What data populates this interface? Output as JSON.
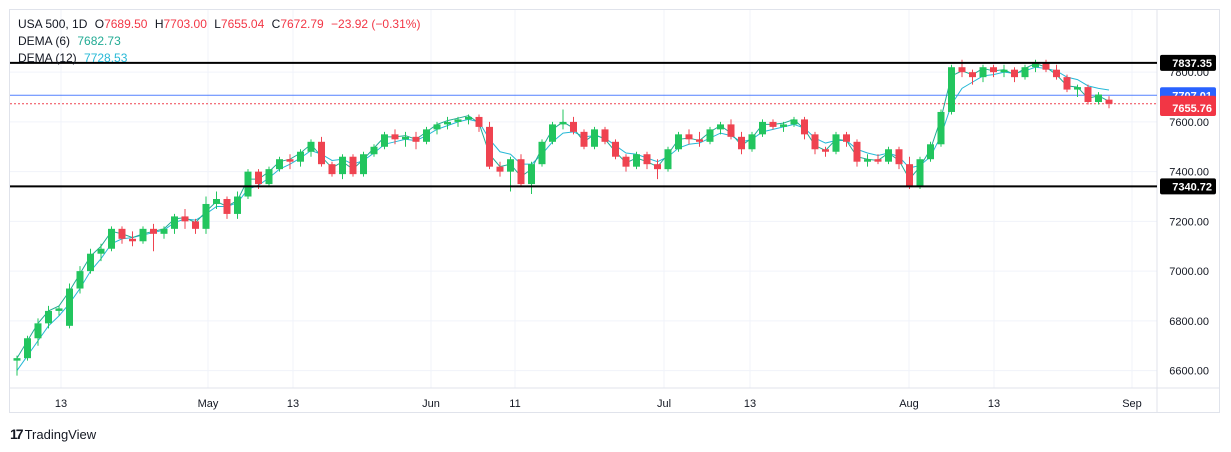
{
  "legend": {
    "symbol": "USA 500",
    "interval": "1D",
    "open_label": "O",
    "open": "7689.50",
    "high_label": "H",
    "high": "7703.00",
    "low_label": "L",
    "low": "7655.04",
    "close_label": "C",
    "close": "7672.79",
    "change": "−23.92 (−0.31%)",
    "dema6_label": "DEMA (6)",
    "dema6_value": "7682.73",
    "dema12_label": "DEMA (12)",
    "dema12_value": "7728.53"
  },
  "brand": {
    "name": "TradingView"
  },
  "colors": {
    "up": "#22c55e",
    "down": "#ef4350",
    "dema6": "#22ab94",
    "dema12": "#26b8d6",
    "grid": "#f0f3fa",
    "text": "#131722",
    "hline": "#000000",
    "price_line": "#2962ff"
  },
  "chart_data": {
    "type": "candlestick",
    "title": "USA 500, 1D",
    "x_ticks": [
      "13",
      "May",
      "13",
      "Jun",
      "11",
      "Jul",
      "13",
      "Aug",
      "13",
      "Sep"
    ],
    "y_ticks": [
      6600,
      6800,
      7000,
      7200,
      7400,
      7600,
      7800
    ],
    "y_tick_labels": [
      "6600.00",
      "6800.00",
      "7000.00",
      "7200.00",
      "7400.00",
      "7600.00",
      "7800.00"
    ],
    "ylim": [
      6530,
      8050
    ],
    "grid": true,
    "horizontal_levels": [
      {
        "value": 7837.35,
        "label": "7837.35",
        "style": "thick-black"
      },
      {
        "value": 7340.72,
        "label": "7340.72",
        "style": "thick-black"
      }
    ],
    "price_labels": [
      {
        "value": 7707.01,
        "label": "7707.01",
        "color": "#2962ff"
      },
      {
        "value": 7672.79,
        "label": "7672.79",
        "color": "#f23645"
      },
      {
        "value": 7655.76,
        "label": "7655.76",
        "color": "#f23645"
      }
    ],
    "series": [
      {
        "name": "USA 500",
        "ohlc": [
          [
            6640,
            6660,
            6580,
            6650
          ],
          [
            6650,
            6740,
            6640,
            6730
          ],
          [
            6730,
            6810,
            6700,
            6790
          ],
          [
            6790,
            6860,
            6770,
            6840
          ],
          [
            6840,
            6860,
            6820,
            6850
          ],
          [
            6780,
            6950,
            6770,
            6930
          ],
          [
            6930,
            7020,
            6910,
            7000
          ],
          [
            7000,
            7090,
            6990,
            7070
          ],
          [
            7070,
            7110,
            7040,
            7090
          ],
          [
            7090,
            7180,
            7080,
            7170
          ],
          [
            7170,
            7180,
            7110,
            7130
          ],
          [
            7130,
            7160,
            7100,
            7120
          ],
          [
            7120,
            7180,
            7110,
            7170
          ],
          [
            7170,
            7190,
            7080,
            7150
          ],
          [
            7150,
            7180,
            7130,
            7170
          ],
          [
            7170,
            7230,
            7150,
            7220
          ],
          [
            7220,
            7250,
            7170,
            7200
          ],
          [
            7200,
            7210,
            7150,
            7170
          ],
          [
            7170,
            7300,
            7150,
            7270
          ],
          [
            7270,
            7320,
            7250,
            7290
          ],
          [
            7290,
            7300,
            7210,
            7230
          ],
          [
            7230,
            7320,
            7210,
            7300
          ],
          [
            7300,
            7410,
            7290,
            7400
          ],
          [
            7400,
            7410,
            7330,
            7350
          ],
          [
            7350,
            7420,
            7340,
            7410
          ],
          [
            7410,
            7460,
            7400,
            7450
          ],
          [
            7450,
            7470,
            7410,
            7440
          ],
          [
            7440,
            7490,
            7420,
            7480
          ],
          [
            7480,
            7530,
            7460,
            7520
          ],
          [
            7520,
            7540,
            7420,
            7430
          ],
          [
            7430,
            7440,
            7380,
            7390
          ],
          [
            7390,
            7470,
            7370,
            7460
          ],
          [
            7460,
            7470,
            7380,
            7390
          ],
          [
            7390,
            7480,
            7380,
            7470
          ],
          [
            7470,
            7510,
            7460,
            7500
          ],
          [
            7500,
            7560,
            7490,
            7550
          ],
          [
            7550,
            7570,
            7510,
            7530
          ],
          [
            7530,
            7560,
            7500,
            7540
          ],
          [
            7540,
            7560,
            7490,
            7520
          ],
          [
            7520,
            7580,
            7510,
            7570
          ],
          [
            7570,
            7600,
            7550,
            7590
          ],
          [
            7590,
            7620,
            7570,
            7600
          ],
          [
            7600,
            7620,
            7580,
            7610
          ],
          [
            7610,
            7630,
            7590,
            7620
          ],
          [
            7620,
            7630,
            7560,
            7580
          ],
          [
            7580,
            7600,
            7410,
            7420
          ],
          [
            7420,
            7440,
            7380,
            7400
          ],
          [
            7400,
            7460,
            7320,
            7450
          ],
          [
            7450,
            7470,
            7340,
            7350
          ],
          [
            7350,
            7440,
            7310,
            7430
          ],
          [
            7430,
            7530,
            7420,
            7520
          ],
          [
            7520,
            7600,
            7510,
            7590
          ],
          [
            7590,
            7650,
            7570,
            7600
          ],
          [
            7600,
            7620,
            7550,
            7560
          ],
          [
            7560,
            7570,
            7490,
            7500
          ],
          [
            7500,
            7580,
            7490,
            7570
          ],
          [
            7570,
            7580,
            7510,
            7520
          ],
          [
            7520,
            7530,
            7450,
            7460
          ],
          [
            7460,
            7470,
            7400,
            7420
          ],
          [
            7420,
            7480,
            7410,
            7470
          ],
          [
            7470,
            7480,
            7410,
            7430
          ],
          [
            7430,
            7450,
            7370,
            7410
          ],
          [
            7410,
            7500,
            7400,
            7490
          ],
          [
            7490,
            7560,
            7480,
            7550
          ],
          [
            7550,
            7570,
            7510,
            7530
          ],
          [
            7530,
            7560,
            7500,
            7520
          ],
          [
            7520,
            7580,
            7510,
            7570
          ],
          [
            7570,
            7600,
            7550,
            7590
          ],
          [
            7590,
            7610,
            7530,
            7540
          ],
          [
            7540,
            7560,
            7470,
            7490
          ],
          [
            7490,
            7560,
            7480,
            7550
          ],
          [
            7550,
            7610,
            7540,
            7600
          ],
          [
            7600,
            7610,
            7570,
            7580
          ],
          [
            7580,
            7600,
            7560,
            7590
          ],
          [
            7590,
            7620,
            7580,
            7610
          ],
          [
            7610,
            7620,
            7530,
            7550
          ],
          [
            7550,
            7560,
            7470,
            7490
          ],
          [
            7490,
            7500,
            7460,
            7480
          ],
          [
            7480,
            7560,
            7470,
            7550
          ],
          [
            7550,
            7560,
            7500,
            7520
          ],
          [
            7520,
            7530,
            7420,
            7440
          ],
          [
            7440,
            7470,
            7420,
            7450
          ],
          [
            7450,
            7470,
            7430,
            7440
          ],
          [
            7440,
            7500,
            7430,
            7490
          ],
          [
            7490,
            7500,
            7410,
            7430
          ],
          [
            7430,
            7460,
            7330,
            7340
          ],
          [
            7340,
            7460,
            7330,
            7450
          ],
          [
            7450,
            7520,
            7440,
            7510
          ],
          [
            7510,
            7650,
            7500,
            7640
          ],
          [
            7640,
            7830,
            7630,
            7820
          ],
          [
            7820,
            7850,
            7780,
            7800
          ],
          [
            7800,
            7810,
            7750,
            7780
          ],
          [
            7780,
            7830,
            7760,
            7820
          ],
          [
            7820,
            7830,
            7780,
            7800
          ],
          [
            7800,
            7830,
            7780,
            7810
          ],
          [
            7810,
            7820,
            7760,
            7780
          ],
          [
            7780,
            7830,
            7770,
            7820
          ],
          [
            7820,
            7850,
            7800,
            7840
          ],
          [
            7840,
            7850,
            7800,
            7810
          ],
          [
            7810,
            7830,
            7770,
            7780
          ],
          [
            7780,
            7790,
            7720,
            7730
          ],
          [
            7730,
            7750,
            7700,
            7740
          ],
          [
            7740,
            7750,
            7670,
            7680
          ],
          [
            7680,
            7720,
            7670,
            7710
          ],
          [
            7689.5,
            7703,
            7655.04,
            7672.79
          ]
        ]
      },
      {
        "name": "DEMA (6)",
        "values": [
          6650,
          6720,
          6790,
          6840,
          6860,
          6920,
          6990,
          7060,
          7100,
          7160,
          7150,
          7135,
          7150,
          7160,
          7170,
          7210,
          7215,
          7195,
          7240,
          7280,
          7260,
          7285,
          7370,
          7370,
          7400,
          7440,
          7450,
          7475,
          7510,
          7460,
          7415,
          7440,
          7410,
          7450,
          7495,
          7540,
          7540,
          7545,
          7530,
          7560,
          7590,
          7605,
          7615,
          7625,
          7595,
          7470,
          7420,
          7430,
          7380,
          7410,
          7495,
          7570,
          7600,
          7575,
          7520,
          7550,
          7530,
          7480,
          7435,
          7455,
          7440,
          7420,
          7470,
          7530,
          7535,
          7525,
          7560,
          7585,
          7555,
          7505,
          7535,
          7590,
          7590,
          7595,
          7610,
          7570,
          7505,
          7485,
          7530,
          7525,
          7460,
          7450,
          7445,
          7475,
          7445,
          7370,
          7420,
          7490,
          7615,
          7785,
          7805,
          7790,
          7815,
          7805,
          7810,
          7790,
          7815,
          7835,
          7820,
          7790,
          7745,
          7740,
          7695,
          7705,
          7682.73
        ]
      },
      {
        "name": "DEMA (12)",
        "values": [
          6600,
          6660,
          6720,
          6780,
          6820,
          6870,
          6930,
          7000,
          7050,
          7110,
          7130,
          7135,
          7145,
          7155,
          7165,
          7195,
          7210,
          7205,
          7230,
          7260,
          7260,
          7275,
          7330,
          7345,
          7375,
          7410,
          7430,
          7455,
          7485,
          7470,
          7445,
          7450,
          7430,
          7445,
          7475,
          7510,
          7520,
          7530,
          7525,
          7545,
          7570,
          7585,
          7600,
          7610,
          7600,
          7530,
          7480,
          7470,
          7430,
          7430,
          7470,
          7520,
          7555,
          7560,
          7540,
          7545,
          7535,
          7505,
          7475,
          7470,
          7455,
          7440,
          7460,
          7495,
          7510,
          7515,
          7535,
          7555,
          7545,
          7520,
          7530,
          7560,
          7570,
          7580,
          7590,
          7575,
          7535,
          7515,
          7525,
          7525,
          7490,
          7475,
          7465,
          7475,
          7460,
          7415,
          7425,
          7460,
          7545,
          7670,
          7735,
          7760,
          7785,
          7790,
          7800,
          7795,
          7805,
          7820,
          7815,
          7805,
          7780,
          7770,
          7745,
          7735,
          7728.53
        ]
      }
    ]
  }
}
